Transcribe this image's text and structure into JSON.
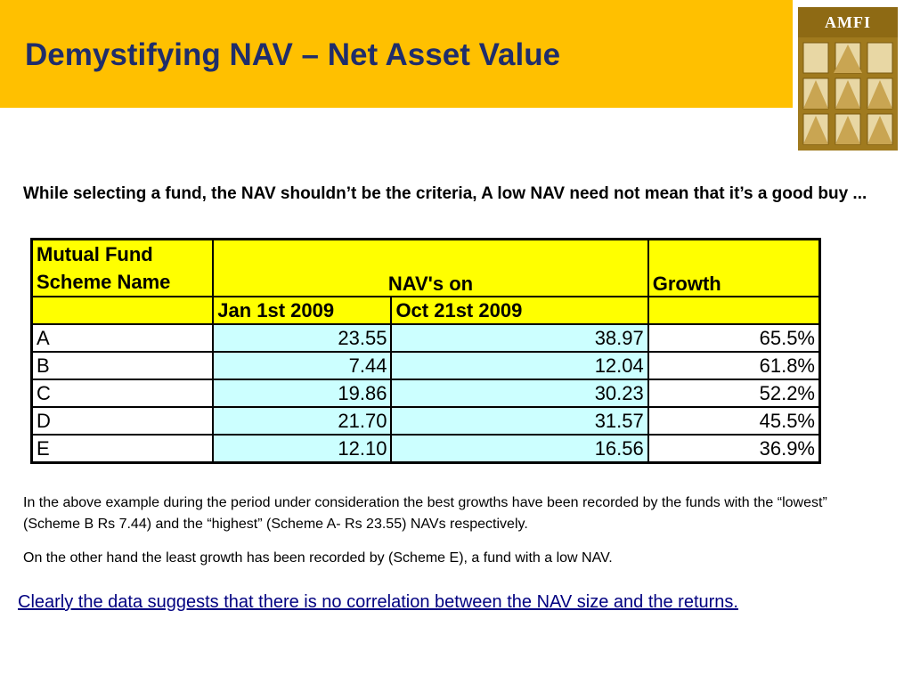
{
  "slide": {
    "title": "Demystifying NAV – Net Asset Value",
    "logo_text": "AMFI",
    "intro": "While selecting a fund, the NAV shouldn’t be the criteria,  A low NAV need not mean that it’s a good buy ...",
    "colors": {
      "header_band": "#FFC000",
      "title": "#1F2D6B",
      "table_header": "#FFFF00",
      "table_cell": "#CCFFFF",
      "conclusion": "#000080"
    }
  },
  "table": {
    "header_name_line1": "Mutual Fund",
    "header_name_line2": "Scheme Name",
    "header_nav": "NAV's on",
    "header_growth": "Growth",
    "sub_jan": "Jan 1st 2009",
    "sub_oct": "Oct 21st 2009",
    "rows": [
      {
        "name": "A",
        "jan": "23.55",
        "oct": "38.97",
        "growth": "65.5%"
      },
      {
        "name": "B",
        "jan": "7.44",
        "oct": "12.04",
        "growth": "61.8%"
      },
      {
        "name": "C",
        "jan": "19.86",
        "oct": "30.23",
        "growth": "52.2%"
      },
      {
        "name": "D",
        "jan": "21.70",
        "oct": "31.57",
        "growth": "45.5%"
      },
      {
        "name": "E",
        "jan": "12.10",
        "oct": "16.56",
        "growth": "36.9%"
      }
    ]
  },
  "notes": {
    "p1": "In the above example during the period under consideration the best growths  have been recorded by the funds with the “lowest” (Scheme B Rs 7.44) and the “highest”  (Scheme A- Rs 23.55) NAVs respectively.",
    "p2": "On the other hand the least growth has been recorded by (Scheme E), a  fund with a low NAV.",
    "conclusion": "Clearly the data suggests that there is no correlation between the NAV size and the returns.  "
  }
}
